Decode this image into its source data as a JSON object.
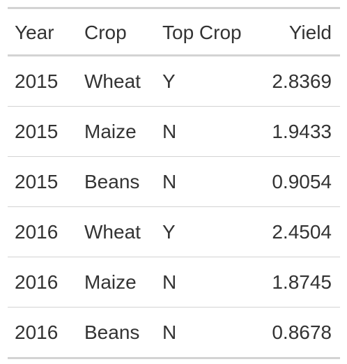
{
  "table": {
    "columns": [
      "Year",
      "Crop",
      "Top Crop",
      "Yield"
    ],
    "rows": [
      {
        "year": "2015",
        "crop": "Wheat",
        "top_crop": "Y",
        "yield": "2.8369"
      },
      {
        "year": "2015",
        "crop": "Maize",
        "top_crop": "N",
        "yield": "1.9433"
      },
      {
        "year": "2015",
        "crop": "Beans",
        "top_crop": "N",
        "yield": "0.9054"
      },
      {
        "year": "2016",
        "crop": "Wheat",
        "top_crop": "Y",
        "yield": "2.4504"
      },
      {
        "year": "2016",
        "crop": "Maize",
        "top_crop": "N",
        "yield": "1.8745"
      },
      {
        "year": "2016",
        "crop": "Beans",
        "top_crop": "N",
        "yield": "0.8678"
      }
    ]
  }
}
